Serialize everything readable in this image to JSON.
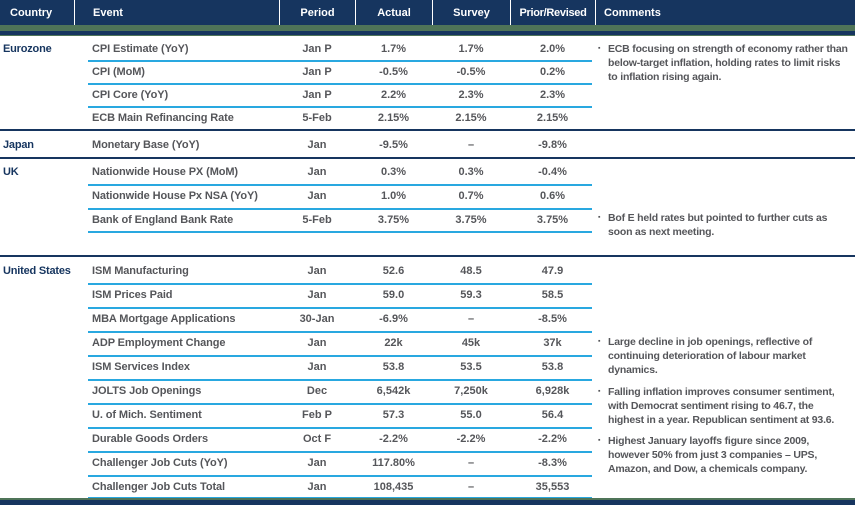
{
  "header": {
    "columns": [
      "Country",
      "Event",
      "Period",
      "Actual",
      "Survey",
      "Prior/Revised",
      "Comments"
    ]
  },
  "colors": {
    "header_navy": "#16355F",
    "accent_green": "#4F7458",
    "row_divider_cyan": "#29A8E0",
    "body_text_gray": "#55565A"
  },
  "bullet_glyph": "▪",
  "sections": [
    {
      "country": "Eurozone",
      "rows": [
        {
          "event": "CPI Estimate (YoY)",
          "period": "Jan P",
          "actual": "1.7%",
          "survey": "1.7%",
          "prior": "2.0%"
        },
        {
          "event": "CPI (MoM)",
          "period": "Jan P",
          "actual": "-0.5%",
          "survey": "-0.5%",
          "prior": "0.2%"
        },
        {
          "event": "CPI Core (YoY)",
          "period": "Jan P",
          "actual": "2.2%",
          "survey": "2.3%",
          "prior": "2.3%"
        },
        {
          "event": "ECB Main Refinancing Rate",
          "period": "5-Feb",
          "actual": "2.15%",
          "survey": "2.15%",
          "prior": "2.15%"
        }
      ],
      "comments": [
        "ECB focusing on strength of economy rather than below-target inflation, holding rates to limit risks to inflation rising again."
      ]
    },
    {
      "country": "Japan",
      "rows": [
        {
          "event": "Monetary Base (YoY)",
          "period": "Jan",
          "actual": "-9.5%",
          "survey": "–",
          "prior": "-9.8%"
        }
      ],
      "comments": []
    },
    {
      "country": "UK",
      "rows": [
        {
          "event": "Nationwide House PX (MoM)",
          "period": "Jan",
          "actual": "0.3%",
          "survey": "0.3%",
          "prior": "-0.4%"
        },
        {
          "event": "Nationwide House Px NSA (YoY)",
          "period": "Jan",
          "actual": "1.0%",
          "survey": "0.7%",
          "prior": "0.6%"
        },
        {
          "event": "Bank of England Bank Rate",
          "period": "5-Feb",
          "actual": "3.75%",
          "survey": "3.75%",
          "prior": "3.75%"
        }
      ],
      "comments": [
        "Bof E held rates but pointed to further cuts as soon as next meeting."
      ]
    },
    {
      "country": "United States",
      "rows": [
        {
          "event": "ISM Manufacturing",
          "period": "Jan",
          "actual": "52.6",
          "survey": "48.5",
          "prior": "47.9"
        },
        {
          "event": "ISM Prices Paid",
          "period": "Jan",
          "actual": "59.0",
          "survey": "59.3",
          "prior": "58.5"
        },
        {
          "event": "MBA Mortgage Applications",
          "period": "30-Jan",
          "actual": "-6.9%",
          "survey": "–",
          "prior": "-8.5%"
        },
        {
          "event": "ADP Employment Change",
          "period": "Jan",
          "actual": "22k",
          "survey": "45k",
          "prior": "37k"
        },
        {
          "event": "ISM Services Index",
          "period": "Jan",
          "actual": "53.8",
          "survey": "53.5",
          "prior": "53.8"
        },
        {
          "event": "JOLTS Job Openings",
          "period": "Dec",
          "actual": "6,542k",
          "survey": "7,250k",
          "prior": "6,928k"
        },
        {
          "event": "U. of Mich. Sentiment",
          "period": "Feb P",
          "actual": "57.3",
          "survey": "55.0",
          "prior": "56.4"
        },
        {
          "event": "Durable Goods Orders",
          "period": "Oct F",
          "actual": "-2.2%",
          "survey": "-2.2%",
          "prior": "-2.2%"
        },
        {
          "event": "Challenger Job Cuts (YoY)",
          "period": "Jan",
          "actual": "117.80%",
          "survey": "–",
          "prior": "-8.3%"
        },
        {
          "event": "Challenger Job Cuts Total",
          "period": "Jan",
          "actual": "108,435",
          "survey": "–",
          "prior": "35,553"
        }
      ],
      "comments": [
        "Large decline in job openings, reflective of continuing deterioration of labour market dynamics.",
        "Falling inflation improves consumer sentiment, with Democrat sentiment rising to 46.7, the highest in a year. Republican sentiment at 93.6.",
        "Highest January layoffs figure since 2009, however 50% from just 3 companies – UPS, Amazon, and Dow, a chemicals company."
      ]
    }
  ]
}
